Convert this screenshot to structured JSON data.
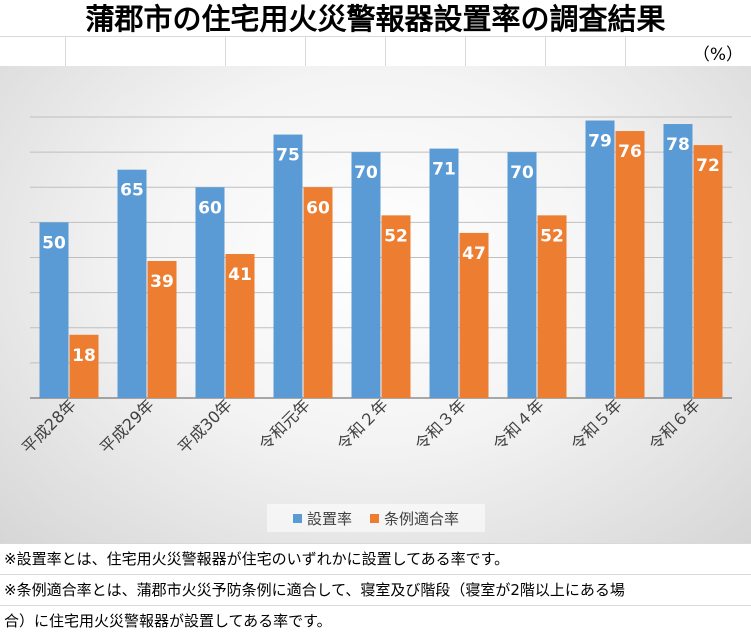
{
  "title": "蒲郡市の住宅用火災警報器設置率の調査結果",
  "unit_label": "（%）",
  "colors": {
    "series1": "#5b9bd5",
    "series2": "#ed7d31"
  },
  "chart_data": {
    "type": "bar",
    "categories": [
      "平成28年",
      "平成29年",
      "平成30年",
      "令和元年",
      "令和２年",
      "令和３年",
      "令和４年",
      "令和５年",
      "令和６年"
    ],
    "series": [
      {
        "name": "設置率",
        "values": [
          50,
          65,
          60,
          75,
          70,
          71,
          70,
          79,
          78
        ]
      },
      {
        "name": "条例適合率",
        "values": [
          18,
          39,
          41,
          60,
          52,
          47,
          52,
          76,
          72
        ]
      }
    ],
    "ylim": [
      0,
      80
    ],
    "grid": true,
    "legend_position": "bottom"
  },
  "notes": [
    "※設置率とは、住宅用火災警報器が住宅のいずれかに設置してある率です。",
    "※条例適合率とは、蒲郡市火災予防条例に適合して、寝室及び階段（寝室が2階以上にある場",
    "合）に住宅用火災警報器が設置してある率です。"
  ]
}
